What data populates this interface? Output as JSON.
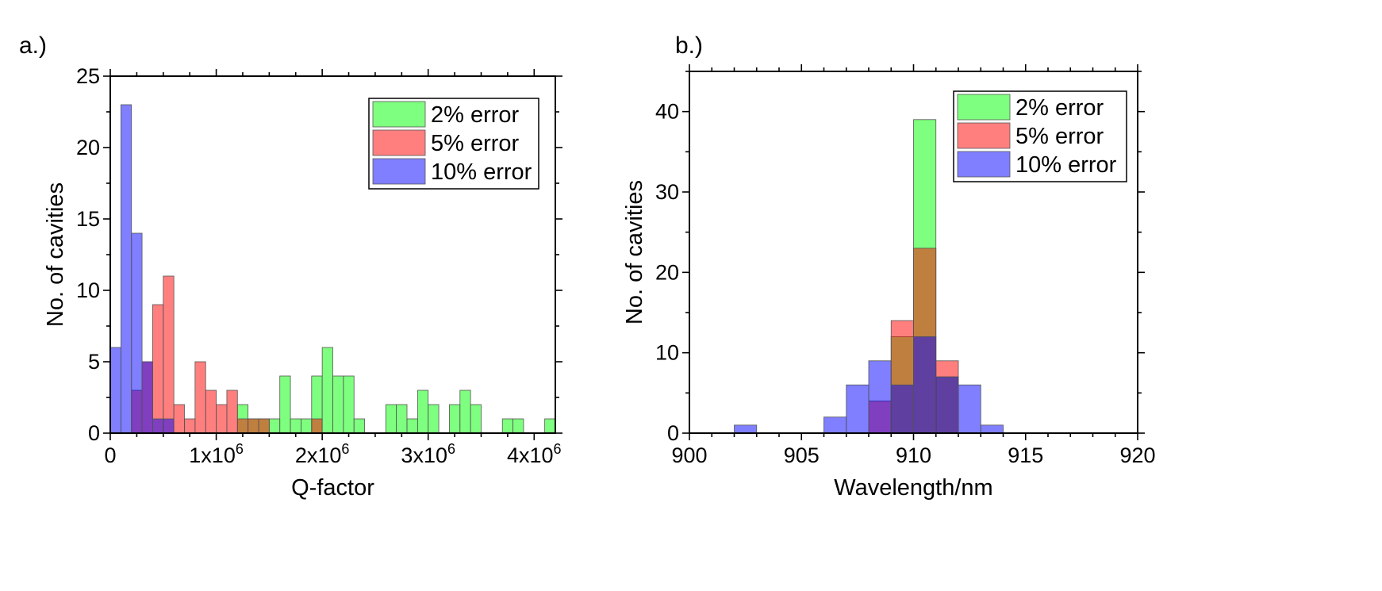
{
  "chart_data": [
    {
      "type": "histogram",
      "panel_label": "a.)",
      "xlabel": "Q-factor",
      "ylabel": "No. of cavities",
      "xlim": [
        0,
        4200000
      ],
      "ylim": [
        0,
        25
      ],
      "bin_width": 100000,
      "x_ticks": [
        {
          "value": 0,
          "label": "0"
        },
        {
          "value": 1000000,
          "label": "1x10",
          "exp": "6"
        },
        {
          "value": 2000000,
          "label": "2x10",
          "exp": "6"
        },
        {
          "value": 3000000,
          "label": "3x10",
          "exp": "6"
        },
        {
          "value": 4000000,
          "label": "4x10",
          "exp": "6"
        }
      ],
      "y_ticks": [
        {
          "value": 0,
          "label": "0"
        },
        {
          "value": 5,
          "label": "5"
        },
        {
          "value": 10,
          "label": "10"
        },
        {
          "value": 15,
          "label": "15"
        },
        {
          "value": 20,
          "label": "20"
        },
        {
          "value": 25,
          "label": "25"
        }
      ],
      "legend_position": "top-right",
      "series": [
        {
          "name": "2% error",
          "color": "#00ff00",
          "bins": [
            {
              "x": 1200000,
              "count": 2
            },
            {
              "x": 1300000,
              "count": 1
            },
            {
              "x": 1400000,
              "count": 1
            },
            {
              "x": 1500000,
              "count": 1
            },
            {
              "x": 1600000,
              "count": 4
            },
            {
              "x": 1700000,
              "count": 1
            },
            {
              "x": 1800000,
              "count": 1
            },
            {
              "x": 1900000,
              "count": 4
            },
            {
              "x": 2000000,
              "count": 6
            },
            {
              "x": 2100000,
              "count": 4
            },
            {
              "x": 2200000,
              "count": 4
            },
            {
              "x": 2300000,
              "count": 1
            },
            {
              "x": 2600000,
              "count": 2
            },
            {
              "x": 2700000,
              "count": 2
            },
            {
              "x": 2800000,
              "count": 1
            },
            {
              "x": 2900000,
              "count": 3
            },
            {
              "x": 3000000,
              "count": 2
            },
            {
              "x": 3200000,
              "count": 2
            },
            {
              "x": 3300000,
              "count": 3
            },
            {
              "x": 3400000,
              "count": 2
            },
            {
              "x": 3700000,
              "count": 1
            },
            {
              "x": 3800000,
              "count": 1
            },
            {
              "x": 4100000,
              "count": 1
            }
          ]
        },
        {
          "name": "5% error",
          "color": "#ff0000",
          "bins": [
            {
              "x": 200000,
              "count": 3
            },
            {
              "x": 300000,
              "count": 5
            },
            {
              "x": 400000,
              "count": 9
            },
            {
              "x": 500000,
              "count": 11
            },
            {
              "x": 600000,
              "count": 2
            },
            {
              "x": 700000,
              "count": 1
            },
            {
              "x": 800000,
              "count": 5
            },
            {
              "x": 900000,
              "count": 3
            },
            {
              "x": 1000000,
              "count": 2
            },
            {
              "x": 1100000,
              "count": 3
            },
            {
              "x": 1200000,
              "count": 1
            },
            {
              "x": 1300000,
              "count": 1
            },
            {
              "x": 1400000,
              "count": 1
            },
            {
              "x": 1900000,
              "count": 1
            }
          ]
        },
        {
          "name": "10% error",
          "color": "#0000ff",
          "bins": [
            {
              "x": 0,
              "count": 6
            },
            {
              "x": 100000,
              "count": 23
            },
            {
              "x": 200000,
              "count": 14
            },
            {
              "x": 300000,
              "count": 5
            },
            {
              "x": 400000,
              "count": 1
            },
            {
              "x": 500000,
              "count": 1
            }
          ]
        }
      ]
    },
    {
      "type": "histogram",
      "panel_label": "b.)",
      "xlabel": "Wavelength/nm",
      "ylabel": "No. of cavities",
      "xlim": [
        900,
        920
      ],
      "ylim": [
        0,
        45
      ],
      "bin_width": 1,
      "x_ticks": [
        {
          "value": 900,
          "label": "900"
        },
        {
          "value": 905,
          "label": "905"
        },
        {
          "value": 910,
          "label": "910"
        },
        {
          "value": 915,
          "label": "915"
        },
        {
          "value": 920,
          "label": "920"
        }
      ],
      "y_ticks": [
        {
          "value": 0,
          "label": "0"
        },
        {
          "value": 10,
          "label": "10"
        },
        {
          "value": 20,
          "label": "20"
        },
        {
          "value": 30,
          "label": "30"
        },
        {
          "value": 40,
          "label": "40"
        }
      ],
      "legend_position": "top-right",
      "series": [
        {
          "name": "2% error",
          "color": "#00ff00",
          "bins": [
            {
              "x": 909,
              "count": 12
            },
            {
              "x": 910,
              "count": 39
            },
            {
              "x": 911,
              "count": 7
            }
          ]
        },
        {
          "name": "5% error",
          "color": "#ff0000",
          "bins": [
            {
              "x": 908,
              "count": 4
            },
            {
              "x": 909,
              "count": 14
            },
            {
              "x": 910,
              "count": 23
            },
            {
              "x": 911,
              "count": 9
            }
          ]
        },
        {
          "name": "10% error",
          "color": "#0000ff",
          "bins": [
            {
              "x": 902,
              "count": 1
            },
            {
              "x": 906,
              "count": 2
            },
            {
              "x": 907,
              "count": 6
            },
            {
              "x": 908,
              "count": 9
            },
            {
              "x": 909,
              "count": 6
            },
            {
              "x": 910,
              "count": 12
            },
            {
              "x": 911,
              "count": 7
            },
            {
              "x": 912,
              "count": 6
            },
            {
              "x": 913,
              "count": 1
            }
          ]
        }
      ]
    }
  ]
}
